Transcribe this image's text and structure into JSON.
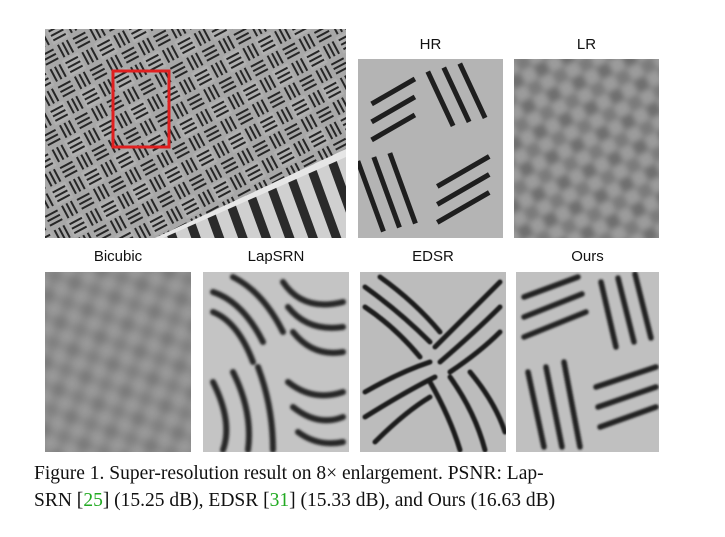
{
  "figure": {
    "panels": {
      "main_label": "",
      "hr_label": "HR",
      "lr_label": "LR",
      "bicubic_label": "Bicubic",
      "lapsrn_label": "LapSRN",
      "edsr_label": "EDSR",
      "ours_label": "Ours"
    },
    "caption": {
      "prefix": "Figure 1. Super-resolution result on 8× enlargement. PSNR: Lap-",
      "line2_a": "SRN [",
      "ref_lapsrn": "25",
      "line2_b": "] (15.25 dB), EDSR [",
      "ref_edsr": "31",
      "line2_c": "] (15.33 dB), and Ours (16.63 dB)"
    },
    "colors": {
      "highlight_box": "#e02020",
      "ref_link": "#22aa22"
    }
  }
}
